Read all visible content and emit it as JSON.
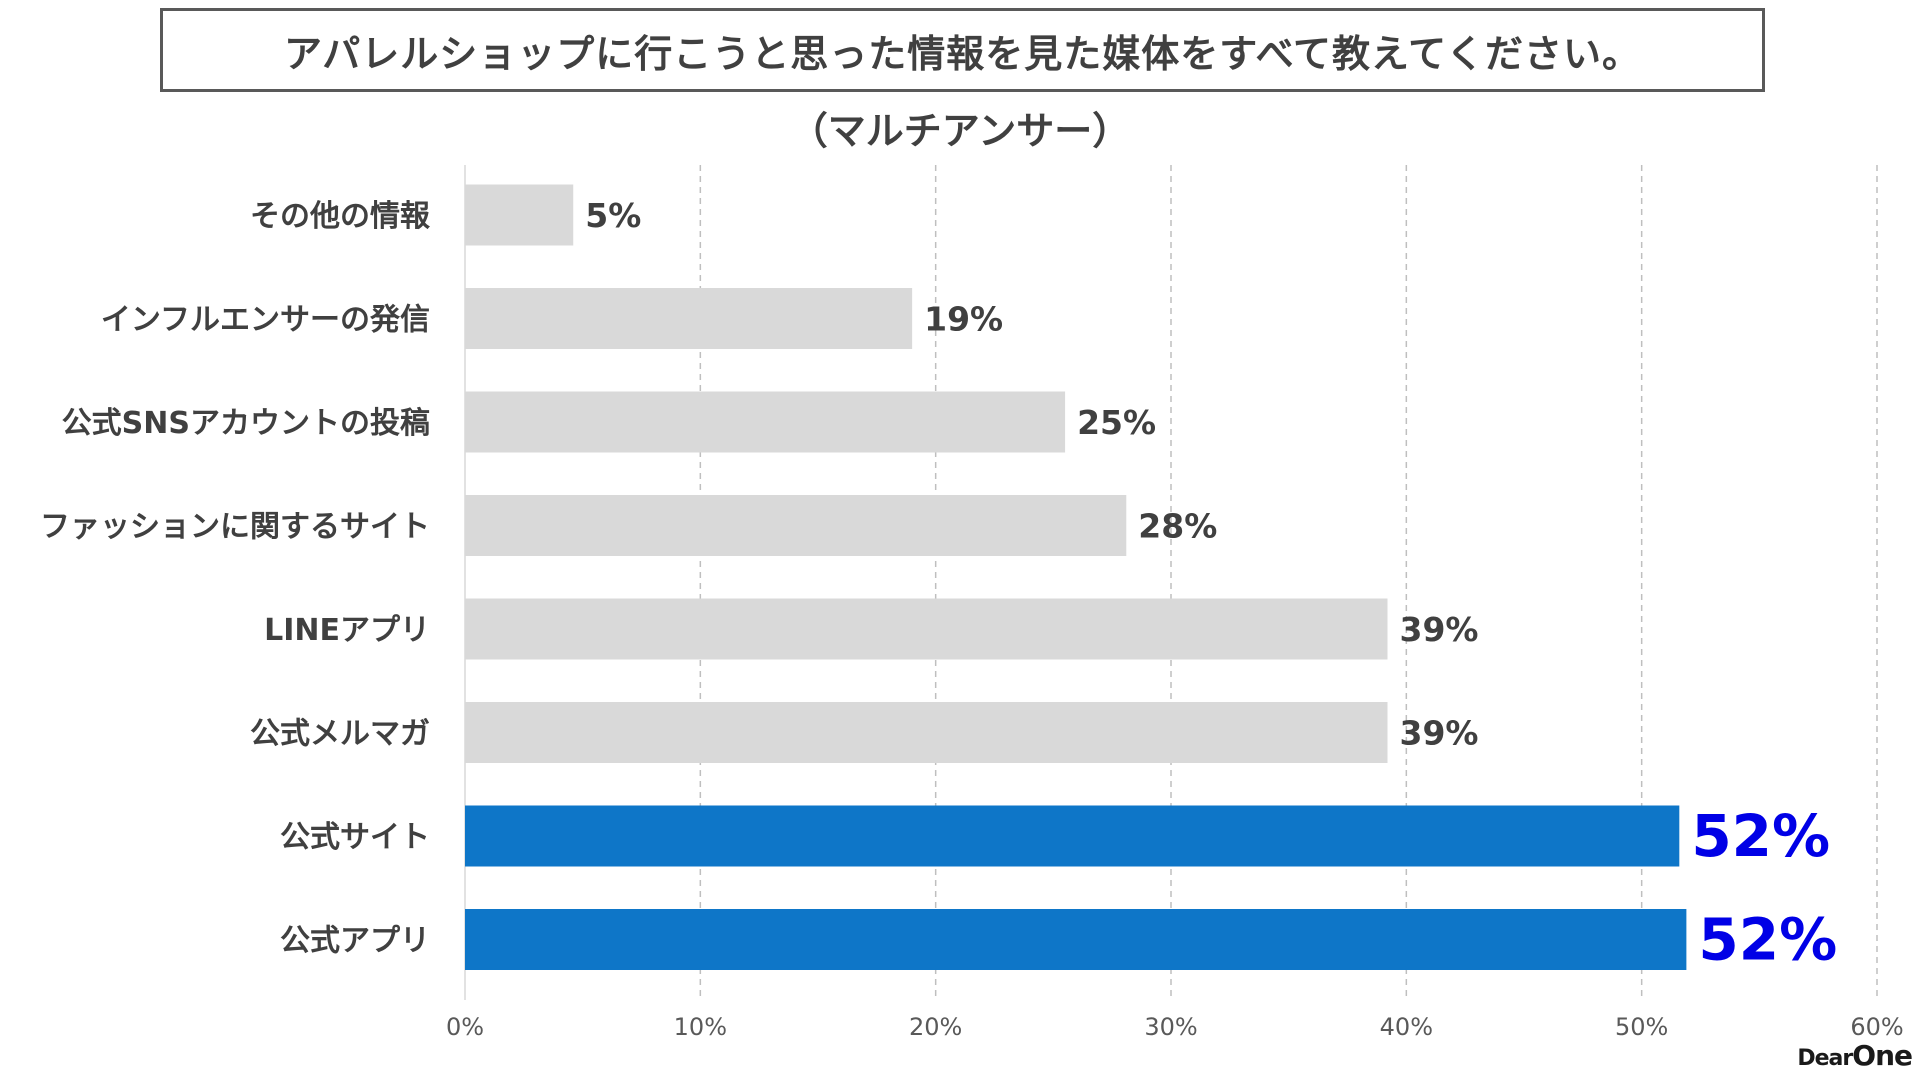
{
  "title": "アパレルショップに行こうと思った情報を見た媒体をすべて教えてください。",
  "subtitle": "（マルチアンサー）",
  "logo": {
    "part1": "Dear",
    "part2": "One"
  },
  "colors": {
    "bar_default": "#d9d9d9",
    "bar_highlight": "#0e76c8",
    "label_highlight": "#0000e6",
    "grid": "#bfbfbf"
  },
  "chart_data": {
    "type": "bar",
    "orientation": "horizontal",
    "categories": [
      "その他の情報",
      "インフルエンサーの発信",
      "公式SNSアカウントの投稿",
      "ファッションに関するサイト",
      "LINEアプリ",
      "公式メルマガ",
      "公式サイト",
      "公式アプリ"
    ],
    "values": [
      4.6,
      19,
      25.5,
      28.1,
      39.2,
      39.2,
      51.6,
      51.9
    ],
    "value_labels": [
      "5%",
      "19%",
      "25%",
      "28%",
      "39%",
      "39%",
      "52%",
      "52%"
    ],
    "highlight": [
      false,
      false,
      false,
      false,
      false,
      false,
      true,
      true
    ],
    "xlim": [
      0,
      60
    ],
    "x_ticks": [
      "0%",
      "10%",
      "20%",
      "30%",
      "40%",
      "50%",
      "60%"
    ],
    "grid": "vertical dashed",
    "title": "アパレルショップに行こうと思った情報を見た媒体をすべて教えてください。",
    "xlabel": "",
    "ylabel": ""
  }
}
